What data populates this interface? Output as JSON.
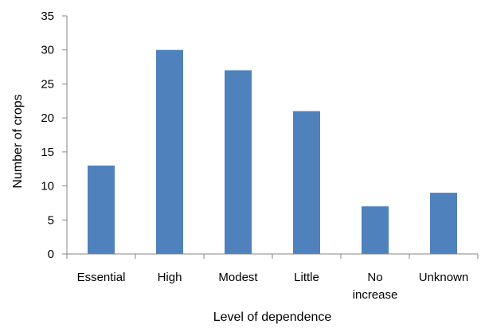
{
  "chart_data": {
    "type": "bar",
    "title": "",
    "xlabel": "Level of dependence",
    "ylabel": "Number of crops",
    "categories": [
      [
        "Essential"
      ],
      [
        "High"
      ],
      [
        "Modest"
      ],
      [
        "Little"
      ],
      [
        "No",
        "increase"
      ],
      [
        "Unknown"
      ]
    ],
    "values": [
      13,
      30,
      27,
      21,
      7,
      9
    ],
    "ylim": [
      0,
      35
    ],
    "yticks": [
      "0",
      "5",
      "10",
      "15",
      "20",
      "25",
      "30",
      "35"
    ],
    "grid": false,
    "legend": "none",
    "bar_color": "#4f81bd",
    "axis_color": "#868686"
  }
}
